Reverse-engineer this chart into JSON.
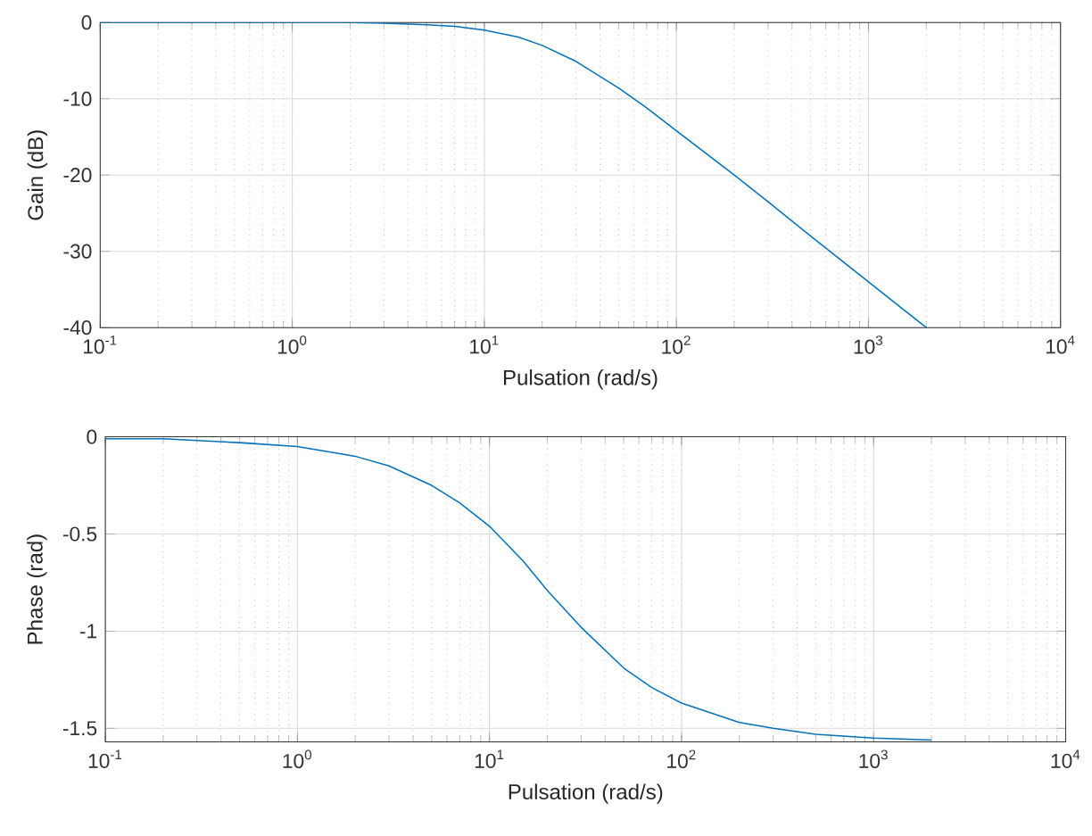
{
  "chart_data": [
    {
      "type": "line",
      "xlabel": "Pulsation (rad/s)",
      "ylabel": "Gain (dB)",
      "color": "#0072bd",
      "log": "x",
      "grid": true,
      "x": [
        0.1,
        0.2,
        0.5,
        1,
        2,
        3,
        5,
        7,
        10,
        15,
        20,
        30,
        50,
        70,
        100,
        200,
        300,
        500,
        1000,
        2000
      ],
      "values": [
        0.0,
        0.0,
        0.0,
        0.0,
        0.0,
        -0.1,
        -0.3,
        -0.5,
        -1.0,
        -1.9,
        -3.0,
        -5.1,
        -8.6,
        -11.2,
        -14.2,
        -20.0,
        -23.5,
        -28.0,
        -34.0,
        -40.0
      ],
      "xlim": [
        0.1,
        10000
      ],
      "ylim": [
        -40,
        0
      ],
      "xticks": [
        {
          "value": 0.1,
          "label": "10$^{-1}$"
        },
        {
          "value": 1,
          "label": "10$^{0}$"
        },
        {
          "value": 10,
          "label": "10$^{1}$"
        },
        {
          "value": 100,
          "label": "10$^{2}$"
        },
        {
          "value": 1000,
          "label": "10$^{3}$"
        },
        {
          "value": 10000,
          "label": "10$^{4}$"
        }
      ],
      "yticks": [
        -40,
        -30,
        -20,
        -10,
        0
      ]
    },
    {
      "type": "line",
      "xlabel": "Pulsation (rad/s)",
      "ylabel": "Phase (rad)",
      "color": "#0072bd",
      "log": "x",
      "grid": true,
      "x": [
        0.1,
        0.2,
        0.5,
        1,
        2,
        3,
        5,
        7,
        10,
        15,
        20,
        30,
        50,
        70,
        100,
        200,
        300,
        500,
        1000,
        2000
      ],
      "values": [
        -0.01,
        -0.01,
        -0.03,
        -0.05,
        -0.1,
        -0.15,
        -0.25,
        -0.34,
        -0.46,
        -0.64,
        -0.79,
        -0.98,
        -1.19,
        -1.29,
        -1.37,
        -1.47,
        -1.5,
        -1.53,
        -1.55,
        -1.56
      ],
      "xlim": [
        0.1,
        10000
      ],
      "ylim": [
        -1.57,
        0
      ],
      "xticks": [
        {
          "value": 0.1,
          "label": "10$^{-1}$"
        },
        {
          "value": 1,
          "label": "10$^{0}$"
        },
        {
          "value": 10,
          "label": "10$^{1}$"
        },
        {
          "value": 100,
          "label": "10$^{2}$"
        },
        {
          "value": 1000,
          "label": "10$^{3}$"
        },
        {
          "value": 10000,
          "label": "10$^{4}$"
        }
      ],
      "yticks": [
        -1.5,
        -1,
        -0.5,
        0
      ]
    }
  ]
}
